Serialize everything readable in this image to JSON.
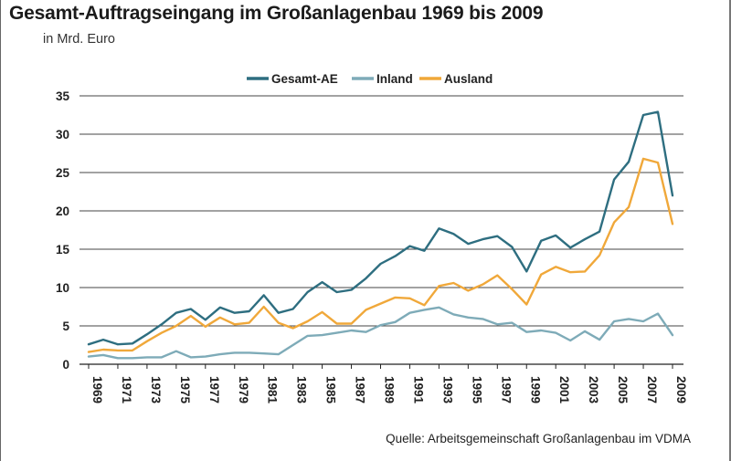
{
  "title": "Gesamt-Auftragseingang im Großanlagenbau 1969 bis 2009",
  "subtitle": "in Mrd. Euro",
  "source": "Quelle: Arbeitsgemeinschaft Großanlagenbau im VDMA",
  "chart_data": {
    "type": "line",
    "title": "Gesamt-Auftragseingang im Großanlagenbau 1969 bis 2009",
    "ylabel": "in Mrd. Euro",
    "xlabel": "",
    "ylim": [
      0,
      35
    ],
    "yticks": [
      0,
      5,
      10,
      15,
      20,
      25,
      30,
      35
    ],
    "grid": true,
    "legend_position": "top",
    "x": [
      1969,
      1970,
      1971,
      1972,
      1973,
      1974,
      1975,
      1976,
      1977,
      1978,
      1979,
      1980,
      1981,
      1982,
      1983,
      1984,
      1985,
      1986,
      1987,
      1988,
      1989,
      1990,
      1991,
      1992,
      1993,
      1994,
      1995,
      1996,
      1997,
      1998,
      1999,
      2000,
      2001,
      2002,
      2003,
      2004,
      2005,
      2006,
      2007,
      2008,
      2009
    ],
    "xticks": [
      "1969",
      "1971",
      "1973",
      "1975",
      "1977",
      "1979",
      "1981",
      "1983",
      "1985",
      "1987",
      "1989",
      "1991",
      "1993",
      "1995",
      "1997",
      "1999",
      "2001",
      "2003",
      "2005",
      "2007",
      "2009"
    ],
    "series": [
      {
        "name": "Gesamt-AE",
        "color": "#2e6e80",
        "values": [
          2.6,
          3.2,
          2.6,
          2.7,
          3.9,
          5.2,
          6.7,
          7.2,
          5.8,
          7.4,
          6.7,
          6.9,
          9.0,
          6.7,
          7.2,
          9.4,
          10.7,
          9.4,
          9.7,
          11.2,
          13.1,
          14.1,
          15.4,
          14.8,
          17.7,
          17.0,
          15.7,
          16.3,
          16.7,
          15.3,
          12.1,
          16.1,
          16.8,
          15.2,
          16.3,
          17.3,
          24.1,
          26.4,
          32.5,
          32.9,
          22.0
        ]
      },
      {
        "name": "Inland",
        "color": "#7eabb8",
        "values": [
          1.0,
          1.2,
          0.8,
          0.8,
          0.9,
          0.9,
          1.7,
          0.9,
          1.0,
          1.3,
          1.5,
          1.5,
          1.4,
          1.3,
          2.5,
          3.7,
          3.8,
          4.1,
          4.4,
          4.2,
          5.1,
          5.5,
          6.7,
          7.1,
          7.4,
          6.5,
          6.1,
          5.9,
          5.2,
          5.4,
          4.2,
          4.4,
          4.1,
          3.1,
          4.3,
          3.2,
          5.6,
          5.9,
          5.6,
          6.6,
          3.8
        ]
      },
      {
        "name": "Ausland",
        "color": "#f0a83a",
        "values": [
          1.6,
          1.9,
          1.8,
          1.8,
          3.0,
          4.1,
          5.0,
          6.3,
          4.9,
          6.1,
          5.2,
          5.4,
          7.5,
          5.4,
          4.7,
          5.6,
          6.8,
          5.3,
          5.3,
          7.1,
          7.9,
          8.7,
          8.6,
          7.7,
          10.2,
          10.6,
          9.6,
          10.4,
          11.6,
          9.8,
          7.8,
          11.7,
          12.7,
          12.0,
          12.1,
          14.2,
          18.5,
          20.5,
          26.8,
          26.3,
          18.3
        ]
      }
    ]
  }
}
